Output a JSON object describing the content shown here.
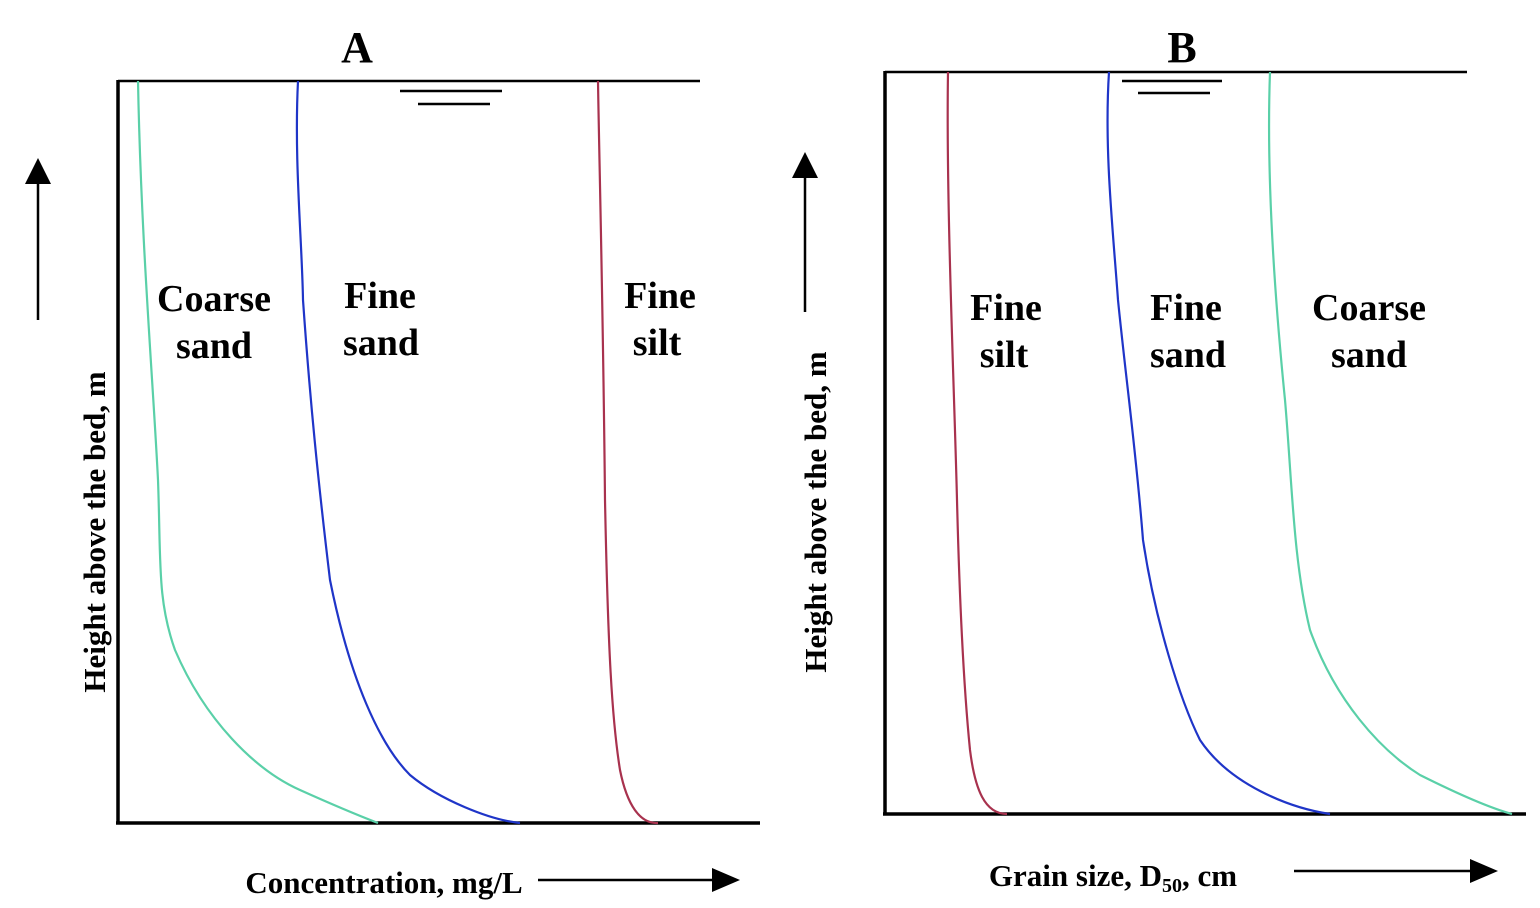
{
  "chart_data": [
    {
      "type": "line",
      "title": "A",
      "xlabel": "Concentration, mg/L",
      "ylabel": "Height above the bed, m",
      "colors": {
        "coarse_sand": "#5ad0a8",
        "fine_sand": "#1f35c8",
        "fine_silt": "#a8324e"
      },
      "curve_labels": [
        {
          "key": "coarse_sand",
          "line1": "Coarse",
          "line2": "sand"
        },
        {
          "key": "fine_sand",
          "line1": "Fine",
          "line2": "sand"
        },
        {
          "key": "fine_silt",
          "line1": "Fine",
          "line2": "silt"
        }
      ]
    },
    {
      "type": "line",
      "title": "B",
      "xlabel_main": "Grain size, D",
      "xlabel_sub": "50",
      "xlabel_tail": ", cm",
      "ylabel": "Height above the bed, m",
      "colors": {
        "fine_silt": "#a8324e",
        "fine_sand": "#1f35c8",
        "coarse_sand": "#5ad0a8"
      },
      "curve_labels": [
        {
          "key": "fine_silt",
          "line1": "Fine",
          "line2": "silt"
        },
        {
          "key": "fine_sand",
          "line1": "Fine",
          "line2": "sand"
        },
        {
          "key": "coarse_sand",
          "line1": "Coarse",
          "line2": "sand"
        }
      ]
    }
  ]
}
